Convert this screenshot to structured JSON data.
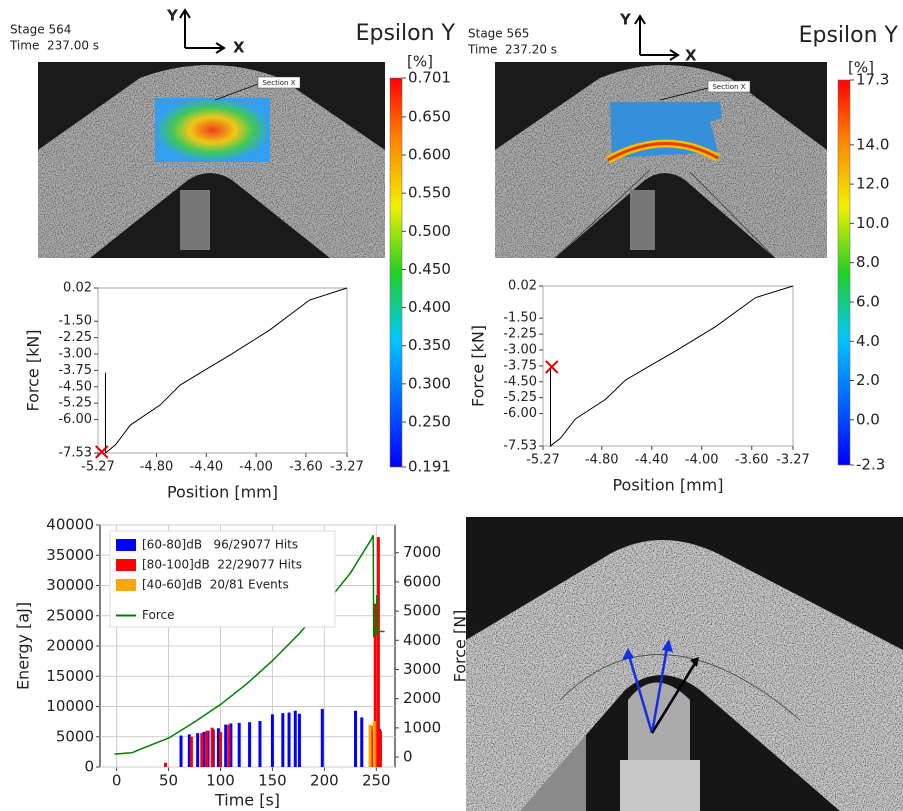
{
  "panels": [
    {
      "stage": "Stage 564",
      "time": "Time  237.00 s",
      "axis_y": "Y",
      "axis_x": "X",
      "field": "Epsilon Y",
      "unit": "[%]",
      "section": "Section X",
      "colorbar": {
        "lim": [
          0.191,
          0.701
        ],
        "ticks": [
          0.701,
          {
            "value": 0.65,
            "label": "0.650"
          },
          {
            "value": 0.6,
            "label": "0.600"
          },
          {
            "value": 0.55,
            "label": "0.550"
          },
          {
            "value": 0.5,
            "label": "0.500"
          },
          {
            "value": 0.45,
            "label": "0.450"
          },
          {
            "value": 0.4,
            "label": "0.400"
          },
          {
            "value": 0.35,
            "label": "0.350"
          },
          {
            "value": 0.3,
            "label": "0.300"
          },
          {
            "value": 0.25,
            "label": "0.250"
          },
          0.191
        ]
      }
    },
    {
      "stage": "Stage 565",
      "time": "Time  237.20 s",
      "axis_y": "Y",
      "axis_x": "X",
      "field": "Epsilon Y",
      "unit": "[%]",
      "section": "Section X",
      "colorbar": {
        "lim": [
          -2.3,
          17.3
        ],
        "ticks": [
          17.3,
          {
            "value": 14,
            "label": "14.0"
          },
          {
            "value": 12,
            "label": "12.0"
          },
          {
            "value": 10,
            "label": "10.0"
          },
          {
            "value": 8,
            "label": "8.0"
          },
          {
            "value": 6,
            "label": "6.0"
          },
          {
            "value": 4,
            "label": "4.0"
          },
          {
            "value": 2,
            "label": "2.0"
          },
          {
            "value": 0,
            "label": "0.0"
          },
          -2.3
        ]
      }
    }
  ],
  "chart_data": [
    {
      "type": "line",
      "xlabel": "Position [mm]",
      "ylabel": "Force [kN]",
      "xlim": [
        -5.27,
        -3.27
      ],
      "ylim": [
        -7.53,
        0.02
      ],
      "xticks": [
        -5.27,
        {
          "value": -4.8,
          "label": "-4.80"
        },
        {
          "value": -4.4,
          "label": "-4.40"
        },
        {
          "value": -4,
          "label": "-4.00"
        },
        {
          "value": -3.6,
          "label": "-3.60"
        },
        -3.27
      ],
      "yticks": [
        0.02,
        {
          "value": -1.5,
          "label": "-1.50"
        },
        -2.25,
        {
          "value": -3,
          "label": "-3.00"
        },
        -3.75,
        {
          "value": -4.5,
          "label": "-4.50"
        },
        -5.25,
        {
          "value": -6,
          "label": "-6.00"
        },
        -7.53
      ],
      "series": [
        {
          "color": "#000000",
          "x": [
            -3.27,
            -3.57,
            -3.89,
            -4.21,
            -4.41,
            -4.61,
            -4.77,
            -5.01,
            -5.13,
            -5.2,
            -5.21,
            -5.21
          ],
          "values": [
            0.02,
            -0.53,
            -1.9,
            -3.05,
            -3.73,
            -4.42,
            -5.33,
            -6.25,
            -7.16,
            -7.48,
            -7.53,
            -3.85
          ]
        },
        {
          "color": "#e00000",
          "marker": "x",
          "x": [
            -5.24
          ],
          "values": [
            -7.48
          ]
        }
      ]
    },
    {
      "type": "line",
      "xlabel": "Position [mm]",
      "ylabel": "Force [kN]",
      "xlim": [
        -5.27,
        -3.27
      ],
      "ylim": [
        -7.53,
        0.02
      ],
      "xticks": [
        -5.27,
        {
          "value": -4.8,
          "label": "-4.80"
        },
        {
          "value": -4.4,
          "label": "-4.40"
        },
        {
          "value": -4,
          "label": "-4.00"
        },
        {
          "value": -3.6,
          "label": "-3.60"
        },
        -3.27
      ],
      "yticks": [
        0.02,
        {
          "value": -1.5,
          "label": "-1.50"
        },
        -2.25,
        {
          "value": -3,
          "label": "-3.00"
        },
        -3.75,
        {
          "value": -4.5,
          "label": "-4.50"
        },
        -5.25,
        {
          "value": -6,
          "label": "-6.00"
        },
        -7.53
      ],
      "series": [
        {
          "color": "#000000",
          "x": [
            -3.27,
            -3.57,
            -3.89,
            -4.21,
            -4.41,
            -4.61,
            -4.77,
            -5.01,
            -5.13,
            -5.2,
            -5.21,
            -5.21
          ],
          "values": [
            0.02,
            -0.53,
            -1.9,
            -3.05,
            -3.73,
            -4.42,
            -5.33,
            -6.25,
            -7.16,
            -7.48,
            -7.53,
            -3.8
          ]
        },
        {
          "color": "#e00000",
          "marker": "x",
          "x": [
            -5.2
          ],
          "values": [
            -3.8
          ]
        }
      ]
    },
    {
      "type": "combo",
      "xlabel": "Time [s]",
      "ylabel": "Energy [aJ]",
      "y2label": "Force [N]",
      "ylabel_color": "#0000ff",
      "y2label_color": "#008000",
      "xlim": [
        -16,
        268
      ],
      "ylim": [
        0,
        40000
      ],
      "y2lim": [
        -340,
        7950
      ],
      "grid": true,
      "legend": "upper left",
      "xticks": [
        0,
        50,
        100,
        150,
        200,
        250
      ],
      "yticks": [
        0,
        5000,
        10000,
        15000,
        20000,
        25000,
        30000,
        35000,
        40000
      ],
      "y2ticks": [
        0,
        1000,
        2000,
        3000,
        4000,
        5000,
        6000,
        7000
      ],
      "series": [
        {
          "name": "[60-80]dB   96/29077 Hits",
          "type": "bar",
          "color": "#0000ff",
          "x": [
            62,
            70,
            78,
            84,
            88,
            93,
            98,
            105,
            110,
            118,
            128,
            138,
            150,
            160,
            166,
            172,
            176,
            198,
            230,
            236,
            246,
            253
          ],
          "values": [
            5200,
            5400,
            5600,
            5800,
            6000,
            6200,
            6400,
            7000,
            7200,
            7300,
            7400,
            7600,
            8700,
            8900,
            9000,
            9300,
            8800,
            9600,
            9300,
            8200,
            6000,
            6300
          ]
        },
        {
          "name": "[80-100]dB  22/29077 Hits",
          "type": "bar",
          "color": "#ff0000",
          "x": [
            47,
            72,
            82,
            87,
            92,
            100,
            108,
            245,
            249,
            252,
            254
          ],
          "values": [
            700,
            5000,
            5600,
            6000,
            6500,
            5800,
            7000,
            6800,
            27000,
            38000,
            6000
          ]
        },
        {
          "name": "[40-60]dB  20/81 Events",
          "type": "bar",
          "color": "#ffa500",
          "x": [
            244,
            248
          ],
          "values": [
            7000,
            7600
          ]
        },
        {
          "name": "Force",
          "type": "line",
          "axis": "y2",
          "color": "#008000",
          "x": [
            -2,
            15,
            25,
            50,
            75,
            100,
            125,
            150,
            175,
            200,
            225,
            245,
            247,
            247.5,
            249,
            250,
            250.5,
            251,
            258
          ],
          "values": [
            100,
            150,
            300,
            650,
            1200,
            1800,
            2500,
            3300,
            4200,
            5200,
            6300,
            7450,
            7600,
            4100,
            4300,
            4250,
            5550,
            4300,
            4300
          ]
        }
      ]
    }
  ]
}
